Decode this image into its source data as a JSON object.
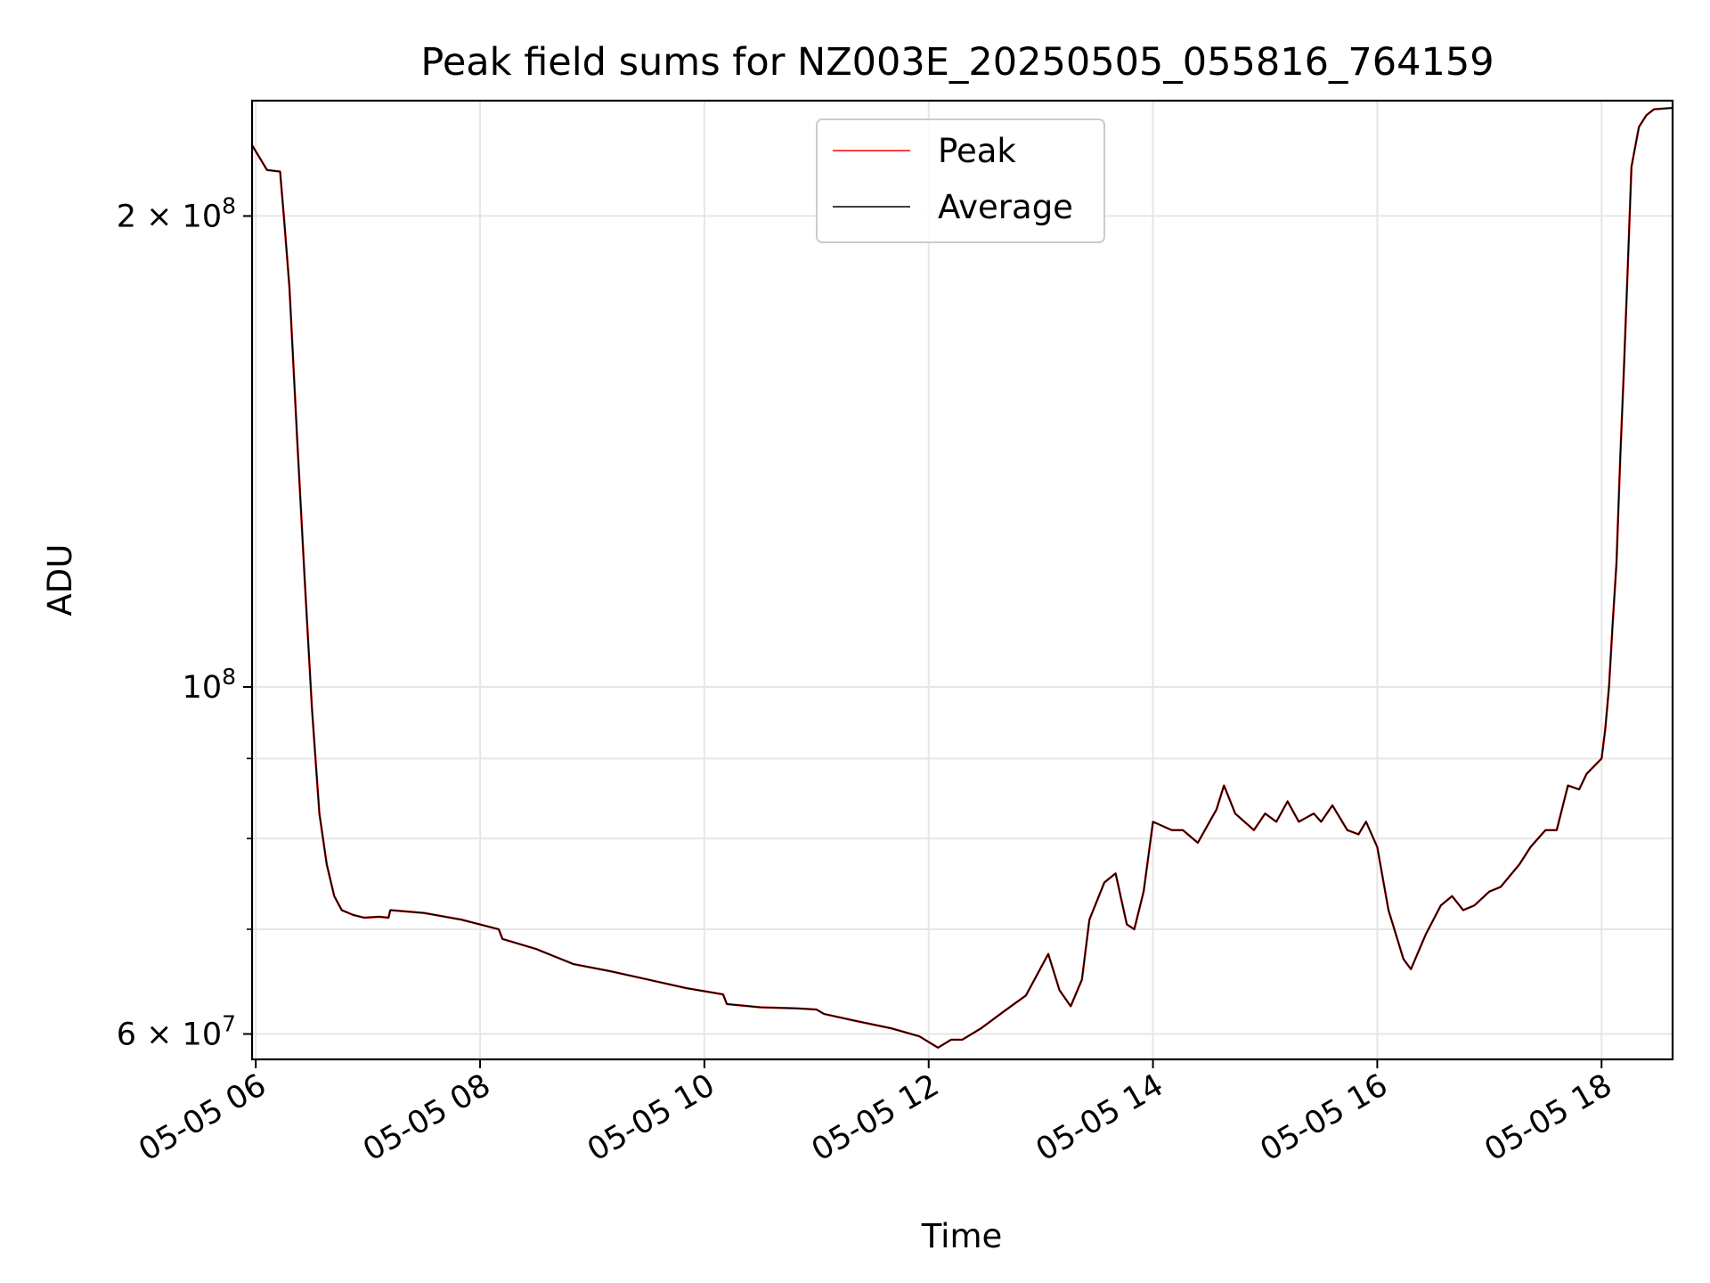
{
  "chart_data": {
    "type": "line",
    "title": "Peak field sums for NZ003E_20250505_055816_764159",
    "xlabel": "Time",
    "ylabel": "ADU",
    "yscale": "log",
    "grid": true,
    "legend_position": "top-center",
    "xlim": [
      "2025-05-05 05:58",
      "2025-05-05 18:38"
    ],
    "ylim": [
      57800000,
      237000000
    ],
    "x_ticks": [
      {
        "value": "2025-05-05 06:00",
        "label": "05-05 06"
      },
      {
        "value": "2025-05-05 08:00",
        "label": "05-05 08"
      },
      {
        "value": "2025-05-05 10:00",
        "label": "05-05 10"
      },
      {
        "value": "2025-05-05 12:00",
        "label": "05-05 12"
      },
      {
        "value": "2025-05-05 14:00",
        "label": "05-05 14"
      },
      {
        "value": "2025-05-05 16:00",
        "label": "05-05 16"
      },
      {
        "value": "2025-05-05 18:00",
        "label": "05-05 18"
      }
    ],
    "y_ticks_major": [
      {
        "value": 60000000,
        "base": "6 × 10",
        "exp": "7"
      },
      {
        "value": 100000000,
        "base": "10",
        "exp": "8"
      },
      {
        "value": 200000000,
        "base": "2 × 10",
        "exp": "8"
      }
    ],
    "y_ticks_minor": [
      70000000,
      80000000,
      90000000
    ],
    "x": [
      "2025-05-05 05:58",
      "2025-05-05 06:06",
      "2025-05-05 06:13",
      "2025-05-05 06:15",
      "2025-05-05 06:18",
      "2025-05-05 06:22",
      "2025-05-05 06:26",
      "2025-05-05 06:30",
      "2025-05-05 06:34",
      "2025-05-05 06:38",
      "2025-05-05 06:42",
      "2025-05-05 06:46",
      "2025-05-05 06:52",
      "2025-05-05 06:58",
      "2025-05-05 07:06",
      "2025-05-05 07:11",
      "2025-05-05 07:12",
      "2025-05-05 07:30",
      "2025-05-05 07:50",
      "2025-05-05 08:10",
      "2025-05-05 08:12",
      "2025-05-05 08:30",
      "2025-05-05 08:50",
      "2025-05-05 09:10",
      "2025-05-05 09:30",
      "2025-05-05 09:50",
      "2025-05-05 10:10",
      "2025-05-05 10:12",
      "2025-05-05 10:30",
      "2025-05-05 10:50",
      "2025-05-05 11:00",
      "2025-05-05 11:04",
      "2025-05-05 11:20",
      "2025-05-05 11:40",
      "2025-05-05 11:55",
      "2025-05-05 12:05",
      "2025-05-05 12:12",
      "2025-05-05 12:18",
      "2025-05-05 12:28",
      "2025-05-05 12:40",
      "2025-05-05 12:52",
      "2025-05-05 13:04",
      "2025-05-05 13:10",
      "2025-05-05 13:16",
      "2025-05-05 13:22",
      "2025-05-05 13:26",
      "2025-05-05 13:34",
      "2025-05-05 13:40",
      "2025-05-05 13:46",
      "2025-05-05 13:50",
      "2025-05-05 13:55",
      "2025-05-05 14:00",
      "2025-05-05 14:10",
      "2025-05-05 14:16",
      "2025-05-05 14:24",
      "2025-05-05 14:34",
      "2025-05-05 14:38",
      "2025-05-05 14:44",
      "2025-05-05 14:54",
      "2025-05-05 15:00",
      "2025-05-05 15:06",
      "2025-05-05 15:12",
      "2025-05-05 15:18",
      "2025-05-05 15:26",
      "2025-05-05 15:30",
      "2025-05-05 15:36",
      "2025-05-05 15:44",
      "2025-05-05 15:50",
      "2025-05-05 15:54",
      "2025-05-05 16:00",
      "2025-05-05 16:06",
      "2025-05-05 16:14",
      "2025-05-05 16:18",
      "2025-05-05 16:26",
      "2025-05-05 16:34",
      "2025-05-05 16:40",
      "2025-05-05 16:46",
      "2025-05-05 16:52",
      "2025-05-05 17:00",
      "2025-05-05 17:06",
      "2025-05-05 17:16",
      "2025-05-05 17:22",
      "2025-05-05 17:30",
      "2025-05-05 17:36",
      "2025-05-05 17:42",
      "2025-05-05 17:48",
      "2025-05-05 17:52",
      "2025-05-05 18:00",
      "2025-05-05 18:02",
      "2025-05-05 18:04",
      "2025-05-05 18:06",
      "2025-05-05 18:08",
      "2025-05-05 18:10",
      "2025-05-05 18:12",
      "2025-05-05 18:14",
      "2025-05-05 18:16",
      "2025-05-05 18:20",
      "2025-05-05 18:24",
      "2025-05-05 18:28",
      "2025-05-05 18:38"
    ],
    "series": [
      {
        "name": "Peak",
        "color": "#ff0000",
        "values": [
          222000000,
          214000000,
          213500000,
          200000000,
          180000000,
          145000000,
          118000000,
          97000000,
          83000000,
          77000000,
          73500000,
          72000000,
          71500000,
          71200000,
          71300000,
          71200000,
          72000000,
          71700000,
          71000000,
          70000000,
          69000000,
          68000000,
          66500000,
          65800000,
          65000000,
          64200000,
          63600000,
          62700000,
          62400000,
          62300000,
          62200000,
          61800000,
          61200000,
          60500000,
          59800000,
          58800000,
          59500000,
          59500000,
          60500000,
          62000000,
          63500000,
          67500000,
          64000000,
          62500000,
          65000000,
          71000000,
          75000000,
          76000000,
          70500000,
          70000000,
          74000000,
          82000000,
          81000000,
          81000000,
          79500000,
          83500000,
          86500000,
          83000000,
          81000000,
          83000000,
          82000000,
          84500000,
          82000000,
          83000000,
          82000000,
          84000000,
          81000000,
          80500000,
          82000000,
          79000000,
          72000000,
          67000000,
          66000000,
          69500000,
          72500000,
          73500000,
          72000000,
          72500000,
          74000000,
          74500000,
          77000000,
          79000000,
          81000000,
          81000000,
          86500000,
          86000000,
          88000000,
          90000000,
          94000000,
          100000000,
          110000000,
          120000000,
          140000000,
          160000000,
          185000000,
          215000000,
          228000000,
          232000000,
          234000000,
          234500000
        ]
      },
      {
        "name": "Average",
        "color": "#000000",
        "values": [
          222000000,
          214000000,
          213500000,
          200000000,
          180000000,
          145000000,
          118000000,
          97000000,
          83000000,
          77000000,
          73500000,
          72000000,
          71500000,
          71200000,
          71300000,
          71200000,
          72000000,
          71700000,
          71000000,
          70000000,
          69000000,
          68000000,
          66500000,
          65800000,
          65000000,
          64200000,
          63600000,
          62700000,
          62400000,
          62300000,
          62200000,
          61800000,
          61200000,
          60500000,
          59800000,
          58800000,
          59500000,
          59500000,
          60500000,
          62000000,
          63500000,
          67500000,
          64000000,
          62500000,
          65000000,
          71000000,
          75000000,
          76000000,
          70500000,
          70000000,
          74000000,
          82000000,
          81000000,
          81000000,
          79500000,
          83500000,
          86500000,
          83000000,
          81000000,
          83000000,
          82000000,
          84500000,
          82000000,
          83000000,
          82000000,
          84000000,
          81000000,
          80500000,
          82000000,
          79000000,
          72000000,
          67000000,
          66000000,
          69500000,
          72500000,
          73500000,
          72000000,
          72500000,
          74000000,
          74500000,
          77000000,
          79000000,
          81000000,
          81000000,
          86500000,
          86000000,
          88000000,
          90000000,
          94000000,
          100000000,
          110000000,
          120000000,
          140000000,
          160000000,
          185000000,
          215000000,
          228000000,
          232000000,
          234000000,
          234500000
        ]
      }
    ]
  }
}
